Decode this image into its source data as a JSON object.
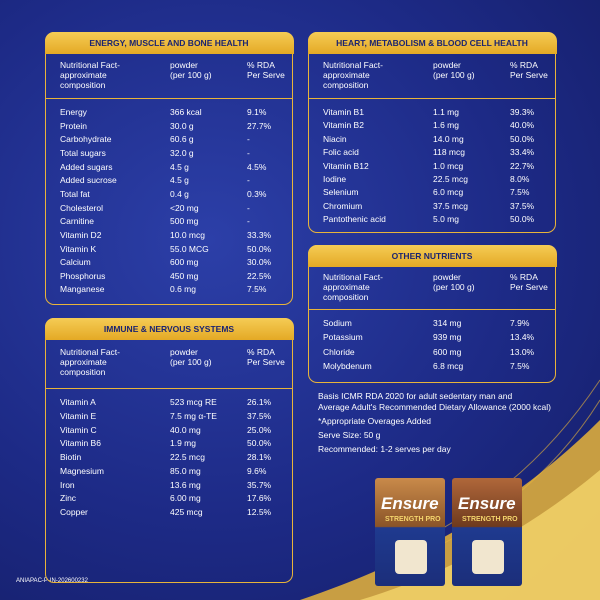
{
  "panels": [
    {
      "title": "ENERGY, MUSCLE AND BONE HEALTH",
      "columns": [
        [
          "Nutritional Fact-",
          "approximate",
          "composition"
        ],
        [
          "powder",
          "(per 100 g)"
        ],
        [
          "% RDA",
          "Per Serve"
        ]
      ],
      "rows": [
        [
          "Energy",
          "366 kcal",
          "9.1%"
        ],
        [
          "Protein",
          "30.0 g",
          "27.7%"
        ],
        [
          "Carbohydrate",
          "60.6 g",
          "-"
        ],
        [
          "Total sugars",
          "32.0 g",
          "-"
        ],
        [
          "Added sugars",
          "4.5 g",
          "4.5%"
        ],
        [
          "Added sucrose",
          "4.5 g",
          "-"
        ],
        [
          "Total fat",
          "0.4 g",
          "0.3%"
        ],
        [
          "Cholesterol",
          "<20 mg",
          "-"
        ],
        [
          "Carnitine",
          "500 mg",
          "-"
        ],
        [
          "Vitamin D2",
          "10.0 mcg",
          "33.3%"
        ],
        [
          "Vitamin K",
          "55.0 MCG",
          "50.0%"
        ],
        [
          "Calcium",
          "600 mg",
          "30.0%"
        ],
        [
          "Phosphorus",
          "450 mg",
          "22.5%"
        ],
        [
          "Manganese",
          "0.6 mg",
          "7.5%"
        ]
      ]
    },
    {
      "title": "HEART, METABOLISM & BLOOD CELL HEALTH",
      "columns": [
        [
          "Nutritional Fact-",
          "approximate",
          "composition"
        ],
        [
          "powder",
          "(per 100 g)"
        ],
        [
          "% RDA",
          "Per Serve"
        ]
      ],
      "rows": [
        [
          "Vitamin B1",
          "1.1 mg",
          "39.3%"
        ],
        [
          "Vitamin B2",
          "1.6 mg",
          "40.0%"
        ],
        [
          "Niacin",
          "14.0 mg",
          "50.0%"
        ],
        [
          "Folic acid",
          "118 mcg",
          "33.4%"
        ],
        [
          "Vitamin B12",
          "1.0 mcg",
          "22.7%"
        ],
        [
          "Iodine",
          "22.5 mcg",
          "8.0%"
        ],
        [
          "Selenium",
          "6.0 mcg",
          "7.5%"
        ],
        [
          "Chromium",
          "37.5 mcg",
          "37.5%"
        ],
        [
          "Pantothenic acid",
          "5.0 mg",
          "50.0%"
        ]
      ]
    },
    {
      "title": "IMMUNE & NERVOUS SYSTEMS",
      "columns": [
        [
          "Nutritional Fact-",
          "approximate",
          "composition"
        ],
        [
          "powder",
          "(per 100 g)"
        ],
        [
          "% RDA",
          "Per Serve"
        ]
      ],
      "rows": [
        [
          "Vitamin A",
          "523 mcg RE",
          "26.1%"
        ],
        [
          "Vitamin E",
          "7.5 mg α-TE",
          "37.5%"
        ],
        [
          "Vitamin C",
          "40.0 mg",
          "25.0%"
        ],
        [
          "Vitamin B6",
          "1.9 mg",
          "50.0%"
        ],
        [
          "Biotin",
          "22.5 mcg",
          "28.1%"
        ],
        [
          "Magnesium",
          "85.0 mg",
          "9.6%"
        ],
        [
          "Iron",
          "13.6 mg",
          "35.7%"
        ],
        [
          "Zinc",
          "6.00 mg",
          "17.6%"
        ],
        [
          "Copper",
          "425 mcg",
          "12.5%"
        ]
      ]
    },
    {
      "title": "OTHER NUTRIENTS",
      "columns": [
        [
          "Nutritional Fact-",
          "approximate",
          "composition"
        ],
        [
          "powder",
          "(per 100 g)"
        ],
        [
          "% RDA",
          "Per Serve"
        ]
      ],
      "rows": [
        [
          "Sodium",
          "314 mg",
          "7.9%"
        ],
        [
          "Potassium",
          "939 mg",
          "13.4%"
        ],
        [
          "Chloride",
          "600 mg",
          "13.0%"
        ],
        [
          "Molybdenum",
          "6.8 mcg",
          "7.5%"
        ]
      ]
    }
  ],
  "notes": [
    "Basis ICMR RDA 2020 for adult sedentary man and",
    "Average Adult's Recommended Dietary Allowance (2000 kcal)",
    "*Appropriate Overages Added",
    "Serve Size: 50 g",
    "Recommended: 1-2 serves per day"
  ],
  "products": [
    {
      "brand": "Ensure",
      "variant": "STRENGTH PRO"
    },
    {
      "brand": "Ensure",
      "variant": "STRENGTH PRO"
    }
  ],
  "footer": "ANIAPAC-P-IN-202600232"
}
